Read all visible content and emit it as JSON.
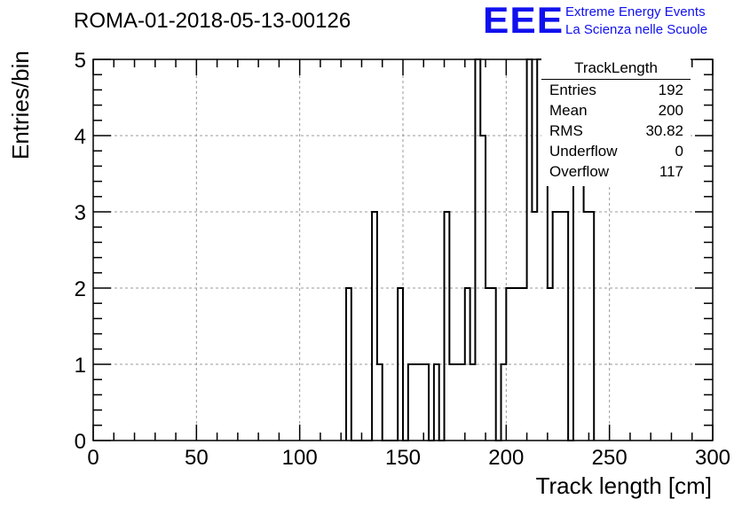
{
  "title": "ROMA-01-2018-05-13-00126",
  "logo": {
    "mark": "EEE",
    "line1": "Extreme Energy Events",
    "line2": "La Scienza nelle Scuole",
    "color": "#1010ee"
  },
  "stats_box": {
    "title": "TrackLength",
    "rows": [
      {
        "label": "Entries",
        "value": "192"
      },
      {
        "label": "Mean",
        "value": "200"
      },
      {
        "label": "RMS",
        "value": "30.82"
      },
      {
        "label": "Underflow",
        "value": "0"
      },
      {
        "label": "Overflow",
        "value": "117"
      }
    ]
  },
  "chart_data": {
    "type": "bar",
    "style": "step-histogram",
    "title": "ROMA-01-2018-05-13-00126",
    "xlabel": "Track length [cm]",
    "ylabel": "Entries/bin",
    "xlim": [
      0,
      300
    ],
    "ylim": [
      0,
      5
    ],
    "grid": true,
    "x_ticks": [
      0,
      50,
      100,
      150,
      200,
      250,
      300
    ],
    "y_ticks": [
      0,
      1,
      2,
      3,
      4,
      5
    ],
    "bin_width": 2.5,
    "bins": [
      {
        "x": 122.5,
        "y": 2
      },
      {
        "x": 125,
        "y": 0
      },
      {
        "x": 127.5,
        "y": 0
      },
      {
        "x": 130,
        "y": 0
      },
      {
        "x": 132.5,
        "y": 0
      },
      {
        "x": 135,
        "y": 3
      },
      {
        "x": 137.5,
        "y": 1
      },
      {
        "x": 140,
        "y": 0
      },
      {
        "x": 142.5,
        "y": 0
      },
      {
        "x": 145,
        "y": 0
      },
      {
        "x": 147.5,
        "y": 2
      },
      {
        "x": 150,
        "y": 0
      },
      {
        "x": 152.5,
        "y": 1
      },
      {
        "x": 155,
        "y": 1
      },
      {
        "x": 157.5,
        "y": 1
      },
      {
        "x": 160,
        "y": 1
      },
      {
        "x": 162.5,
        "y": 0
      },
      {
        "x": 165,
        "y": 1
      },
      {
        "x": 167.5,
        "y": 0
      },
      {
        "x": 170,
        "y": 3
      },
      {
        "x": 172.5,
        "y": 1
      },
      {
        "x": 175,
        "y": 1
      },
      {
        "x": 177.5,
        "y": 1
      },
      {
        "x": 180,
        "y": 2
      },
      {
        "x": 182.5,
        "y": 1
      },
      {
        "x": 185,
        "y": 5
      },
      {
        "x": 187.5,
        "y": 4
      },
      {
        "x": 190,
        "y": 2
      },
      {
        "x": 192.5,
        "y": 2
      },
      {
        "x": 195,
        "y": 0
      },
      {
        "x": 197.5,
        "y": 1
      },
      {
        "x": 200,
        "y": 2
      },
      {
        "x": 202.5,
        "y": 2
      },
      {
        "x": 205,
        "y": 2
      },
      {
        "x": 207.5,
        "y": 2
      },
      {
        "x": 210,
        "y": 5
      },
      {
        "x": 212.5,
        "y": 3
      },
      {
        "x": 215,
        "y": 5
      },
      {
        "x": 217.5,
        "y": 5
      },
      {
        "x": 220,
        "y": 2
      },
      {
        "x": 222.5,
        "y": 3
      },
      {
        "x": 225,
        "y": 3
      },
      {
        "x": 227.5,
        "y": 3
      },
      {
        "x": 230,
        "y": 0
      },
      {
        "x": 232.5,
        "y": 4
      },
      {
        "x": 235,
        "y": 4
      },
      {
        "x": 237.5,
        "y": 3
      },
      {
        "x": 240,
        "y": 3
      }
    ]
  }
}
